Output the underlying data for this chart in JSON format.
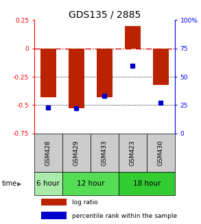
{
  "title": "GDS135 / 2885",
  "samples": [
    "GSM428",
    "GSM429",
    "GSM433",
    "GSM423",
    "GSM430"
  ],
  "log_ratio": [
    -0.43,
    -0.53,
    -0.43,
    0.2,
    -0.32
  ],
  "percentile_rank": [
    23,
    22,
    33,
    60,
    27
  ],
  "ylim_left": [
    -0.75,
    0.25
  ],
  "ylim_right": [
    0,
    100
  ],
  "bar_color": "#bb2200",
  "dot_color": "#0000cc",
  "hline_0_color": "#cc0000",
  "hline_dotted_color": "#000000",
  "bg_color": "#ffffff",
  "time_groups": [
    {
      "label": "6 hour",
      "samples": [
        0
      ],
      "color": "#aaeaaa"
    },
    {
      "label": "12 hour",
      "samples": [
        1,
        2
      ],
      "color": "#55dd55"
    },
    {
      "label": "18 hour",
      "samples": [
        3,
        4
      ],
      "color": "#33cc33"
    }
  ],
  "sample_box_color": "#cccccc",
  "legend_red_label": "log ratio",
  "legend_blue_label": "percentile rank within the sample",
  "time_label": "time",
  "left_yticks": [
    0.25,
    0.0,
    -0.25,
    -0.5,
    -0.75
  ],
  "left_ytick_labels": [
    "0.25",
    "0",
    "-0.25",
    "-0.5",
    "-0.75"
  ],
  "right_yticks": [
    100,
    75,
    50,
    25,
    0
  ],
  "right_ytick_labels": [
    "100%",
    "75",
    "50",
    "25",
    "0"
  ]
}
